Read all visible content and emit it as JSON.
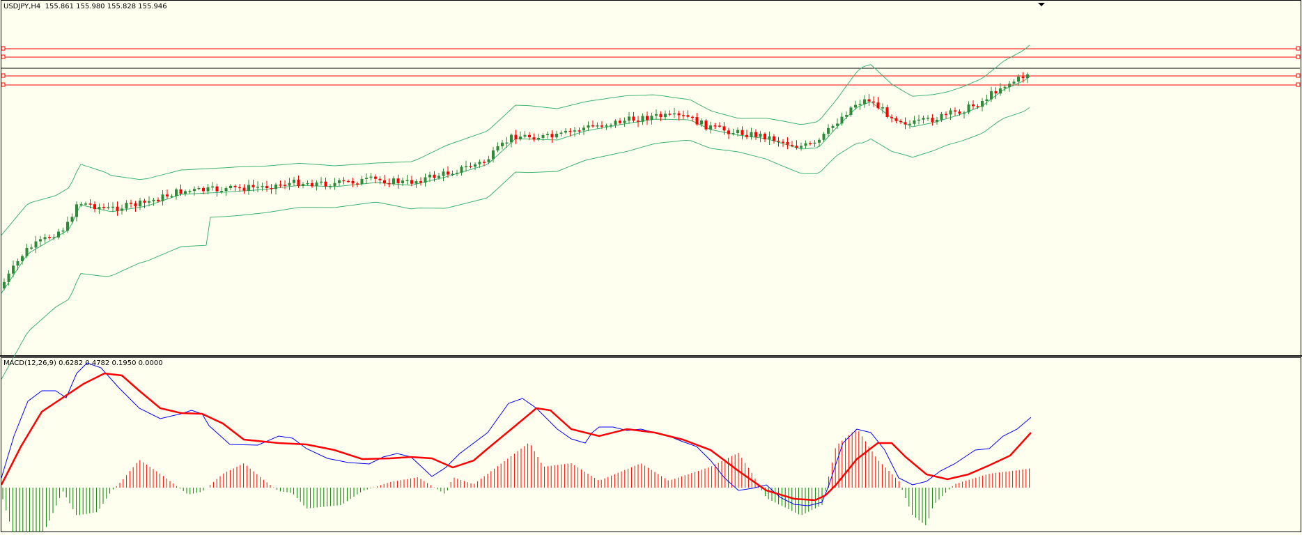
{
  "main_panel": {
    "title": "USDJPY,H4  155.861 155.980 155.828 155.946"
  },
  "sub_panel": {
    "title": "MACD(12,26,9) 0.6282 0.4782 0.1950 0.0000"
  },
  "colors": {
    "background": "#fffff0",
    "bull_candle": "#2e8b3a",
    "bear_candle": "#ff0000",
    "bands": "#3cb371",
    "hline": "#ff0000",
    "bid_line": "#000000",
    "macd_line": "#0000ff",
    "signal_line": "#ff0000",
    "hist_pos": "#ff0000",
    "hist_neg": "#008000"
  },
  "chart_data": [
    {
      "type": "candlestick",
      "symbol": "USDJPY",
      "timeframe": "H4",
      "ohlc_last": {
        "open": 155.861,
        "high": 155.98,
        "low": 155.828,
        "close": 155.946
      },
      "indicator": "Bollinger Bands",
      "horizontal_levels_count": 4,
      "grid": false
    },
    {
      "type": "line",
      "indicator": "MACD",
      "params": [
        12,
        26,
        9
      ],
      "values": {
        "macd": 0.6282,
        "signal": 0.4782,
        "histogram": 0.195,
        "zero": 0.0
      },
      "grid": false
    }
  ]
}
